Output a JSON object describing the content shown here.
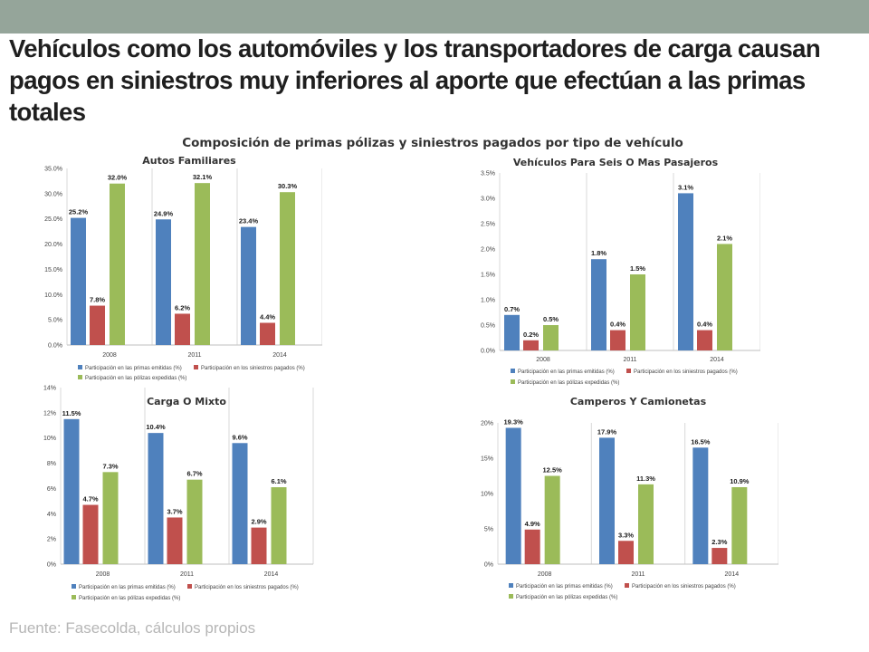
{
  "slide": {
    "title": "Vehículos como los automóviles y los transportadores de carga causan pagos en siniestros muy inferiores al aporte que efectúan a las primas totales",
    "subtitle": "Composición de primas pólizas y siniestros pagados por tipo de vehículo",
    "source": "Fuente: Fasecolda, cálculos propios"
  },
  "colors": {
    "primas": "#4f81bd",
    "siniestros": "#c0504d",
    "polizas": "#9bbb59",
    "topbar": "#95a59a"
  },
  "chart_data": [
    {
      "type": "bar",
      "title": "Autos Familiares",
      "categories": [
        "2008",
        "2011",
        "2014"
      ],
      "ylim": [
        0,
        35
      ],
      "ytick_step": 5,
      "ytick_format": "pct1",
      "series": [
        {
          "name": "Participación en las primas emitidas (%)",
          "values": [
            25.2,
            24.9,
            23.4
          ],
          "labels": [
            "25.2%",
            "24.9%",
            "23.4%"
          ]
        },
        {
          "name": "Participación en los siniestros pagados (%)",
          "values": [
            7.8,
            6.2,
            4.4
          ],
          "labels": [
            "7.8%",
            "6.2%",
            "4.4%"
          ]
        },
        {
          "name": "Participación en las pólizas expedidas (%)",
          "values": [
            32.0,
            32.1,
            30.3
          ],
          "labels": [
            "32.0%",
            "32.1%",
            "30.3%"
          ]
        }
      ],
      "grid": "vertical-separators",
      "legend": "bottom"
    },
    {
      "type": "bar",
      "title": "Vehículos Para Seis O Mas Pasajeros",
      "categories": [
        "2008",
        "2011",
        "2014"
      ],
      "ylim": [
        0,
        3.5
      ],
      "ytick_step": 0.5,
      "ytick_format": "pct1",
      "series": [
        {
          "name": "Participación en las primas emitidas (%)",
          "values": [
            0.7,
            1.8,
            3.1
          ],
          "labels": [
            "0.7%",
            "1.8%",
            "3.1%"
          ]
        },
        {
          "name": "Participación en los siniestros pagados (%)",
          "values": [
            0.2,
            0.4,
            0.4
          ],
          "labels": [
            "0.2%",
            "0.4%",
            "0.4%"
          ]
        },
        {
          "name": "Participación en las pólizas expedidas (%)",
          "values": [
            0.5,
            1.5,
            2.1
          ],
          "labels": [
            "0.5%",
            "1.5%",
            "2.1%"
          ]
        }
      ],
      "grid": "vertical-separators",
      "legend": "bottom"
    },
    {
      "type": "bar",
      "title": "Carga O Mixto",
      "categories": [
        "2008",
        "2011",
        "2014"
      ],
      "ylim": [
        0,
        14
      ],
      "ytick_step": 2,
      "ytick_format": "pct0",
      "series": [
        {
          "name": "Participación en las primas emitidas (%)",
          "values": [
            11.5,
            10.4,
            9.6
          ],
          "labels": [
            "11.5%",
            "10.4%",
            "9.6%"
          ]
        },
        {
          "name": "Participación en los siniestros pagados (%)",
          "values": [
            4.7,
            3.7,
            2.9
          ],
          "labels": [
            "4.7%",
            "3.7%",
            "2.9%"
          ]
        },
        {
          "name": "Participación en las pólizas expedidas (%)",
          "values": [
            7.3,
            6.7,
            6.1
          ],
          "labels": [
            "7.3%",
            "6.7%",
            "6.1%"
          ]
        }
      ],
      "grid": "vertical-separators",
      "legend": "bottom"
    },
    {
      "type": "bar",
      "title": "Camperos Y Camionetas",
      "categories": [
        "2008",
        "2011",
        "2014"
      ],
      "ylim": [
        0,
        20
      ],
      "ytick_step": 5,
      "ytick_format": "pct0",
      "series": [
        {
          "name": "Participación en las primas emitidas (%)",
          "values": [
            19.3,
            17.9,
            16.5
          ],
          "labels": [
            "19.3%",
            "17.9%",
            "16.5%"
          ]
        },
        {
          "name": "Participación en los siniestros pagados (%)",
          "values": [
            4.9,
            3.3,
            2.3
          ],
          "labels": [
            "4.9%",
            "3.3%",
            "2.3%"
          ]
        },
        {
          "name": "Participación en las pólizas expedidas (%)",
          "values": [
            12.5,
            11.3,
            10.9
          ],
          "labels": [
            "12.5%",
            "11.3%",
            "10.9%"
          ]
        }
      ],
      "grid": "vertical-separators",
      "legend": "bottom"
    }
  ]
}
